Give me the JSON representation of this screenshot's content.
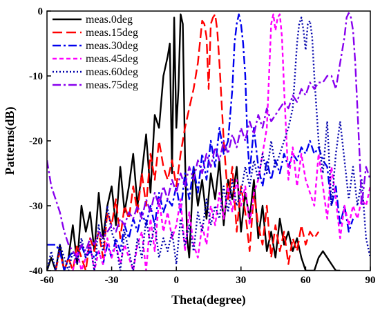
{
  "chart_data": {
    "type": "line",
    "title": "",
    "xlabel": "Theta(degree)",
    "ylabel": "Patterns(dB)",
    "xlim": [
      -60,
      90
    ],
    "ylim": [
      -40,
      0
    ],
    "xticks": [
      -60,
      -30,
      0,
      30,
      60,
      90
    ],
    "yticks": [
      0,
      -10,
      -20,
      -30,
      -40
    ],
    "grid": false,
    "legend_position": "top-left",
    "series": [
      {
        "name": "meas.0deg",
        "color": "#000000",
        "dash": "solid",
        "x": [
          -60,
          -58,
          -56,
          -54,
          -52,
          -50,
          -48,
          -46,
          -44,
          -42,
          -40,
          -38,
          -36,
          -34,
          -32,
          -30,
          -28,
          -26,
          -24,
          -22,
          -20,
          -18,
          -16,
          -14,
          -12,
          -10,
          -8,
          -6,
          -4,
          -3,
          -2,
          -1,
          0,
          1,
          2,
          3,
          4,
          5,
          6,
          8,
          10,
          12,
          14,
          16,
          18,
          20,
          22,
          24,
          26,
          28,
          30,
          32,
          34,
          36,
          38,
          40,
          42,
          44,
          46,
          48,
          50,
          52,
          54,
          56,
          58,
          60,
          62,
          64,
          66,
          68,
          70,
          72,
          74,
          76
        ],
        "y": [
          -40,
          -38,
          -40,
          -36,
          -40,
          -38,
          -33,
          -39,
          -30,
          -34,
          -31,
          -37,
          -28,
          -35,
          -30,
          -27,
          -33,
          -24,
          -31,
          -27,
          -22,
          -30,
          -25,
          -19,
          -28,
          -16,
          -18,
          -10,
          -7,
          -5,
          -25,
          -1,
          -18,
          -12,
          -0.5,
          -2,
          -22,
          -35,
          -38,
          -24,
          -30,
          -26,
          -32,
          -25,
          -29,
          -23,
          -33,
          -26,
          -29,
          -24,
          -34,
          -28,
          -32,
          -26,
          -35,
          -30,
          -37,
          -34,
          -38,
          -32,
          -36,
          -34,
          -37,
          -35,
          -38,
          -40,
          -40,
          -40,
          -38,
          -37,
          -38,
          -39,
          -40,
          -40
        ]
      },
      {
        "name": "meas.15deg",
        "color": "#ff0000",
        "dash": "long",
        "x": [
          -56,
          -54,
          -52,
          -50,
          -48,
          -46,
          -44,
          -42,
          -40,
          -38,
          -36,
          -34,
          -32,
          -30,
          -28,
          -26,
          -24,
          -22,
          -20,
          -18,
          -16,
          -14,
          -12,
          -10,
          -8,
          -6,
          -4,
          -2,
          0,
          2,
          4,
          6,
          8,
          10,
          12,
          13,
          14,
          15,
          16,
          17,
          18,
          19,
          20,
          22,
          24,
          26,
          28,
          30,
          32,
          34,
          36,
          38,
          40,
          42,
          44,
          46,
          48,
          50,
          52,
          54,
          56,
          58,
          60,
          62,
          64,
          66
        ],
        "y": [
          -40,
          -37,
          -40,
          -38,
          -40,
          -36,
          -38,
          -40,
          -35,
          -37,
          -34,
          -38,
          -31,
          -33,
          -29,
          -35,
          -30,
          -32,
          -27,
          -31,
          -25,
          -30,
          -22,
          -26,
          -20,
          -24,
          -26,
          -23,
          -27,
          -22,
          -18,
          -15,
          -12,
          -8,
          -1.5,
          -2,
          -4,
          -12,
          -2,
          -1,
          -0.5,
          -3,
          -8,
          -20,
          -29,
          -24,
          -34,
          -27,
          -31,
          -37,
          -28,
          -33,
          -36,
          -30,
          -38,
          -33,
          -37,
          -34,
          -39,
          -35,
          -37,
          -33,
          -36,
          -34,
          -35,
          -34
        ]
      },
      {
        "name": "meas.30deg",
        "color": "#0000ee",
        "dash": "dashdot",
        "x": [
          -60,
          -58,
          -56,
          -54,
          -52,
          -50,
          -48,
          -46,
          -44,
          -42,
          -40,
          -38,
          -36,
          -34,
          -32,
          -30,
          -28,
          -26,
          -24,
          -22,
          -20,
          -18,
          -16,
          -14,
          -12,
          -10,
          -8,
          -6,
          -4,
          -2,
          0,
          2,
          4,
          6,
          8,
          10,
          12,
          14,
          16,
          18,
          20,
          22,
          24,
          26,
          27,
          28,
          29,
          30,
          31,
          32,
          33,
          34,
          36,
          38,
          40,
          42,
          44,
          46,
          48,
          50,
          52,
          54,
          56,
          58,
          60,
          62,
          64,
          66,
          68,
          70,
          72,
          74,
          76,
          78,
          80,
          82
        ],
        "y": [
          -36,
          -36,
          -36,
          -37,
          -40,
          -38,
          -37,
          -38,
          -36,
          -38,
          -37,
          -38,
          -37,
          -39,
          -36,
          -38,
          -35,
          -37,
          -33,
          -35,
          -32,
          -34,
          -31,
          -33,
          -30,
          -33,
          -28,
          -31,
          -29,
          -30,
          -27,
          -31,
          -25,
          -29,
          -24,
          -28,
          -22,
          -26,
          -20,
          -24,
          -18,
          -22,
          -20,
          -12,
          -5,
          -2,
          -0.5,
          -2,
          -5,
          -10,
          -20,
          -25,
          -18,
          -24,
          -27,
          -23,
          -26,
          -23,
          -25,
          -22,
          -24,
          -22,
          -23,
          -21,
          -22,
          -20,
          -22,
          -21,
          -23,
          -24,
          -30,
          -27,
          -33,
          -30,
          -34,
          -32
        ]
      },
      {
        "name": "meas.45deg",
        "color": "#ff00ff",
        "dash": "short",
        "x": [
          -48,
          -46,
          -44,
          -42,
          -40,
          -38,
          -36,
          -34,
          -32,
          -30,
          -28,
          -26,
          -24,
          -22,
          -20,
          -18,
          -16,
          -14,
          -12,
          -10,
          -8,
          -6,
          -4,
          -2,
          0,
          2,
          4,
          6,
          8,
          10,
          12,
          14,
          16,
          18,
          20,
          22,
          24,
          26,
          28,
          30,
          32,
          34,
          36,
          38,
          40,
          42,
          43,
          44,
          45,
          46,
          47,
          48,
          49,
          50,
          52,
          54,
          56,
          58,
          60,
          62,
          64,
          66,
          68,
          70,
          72,
          74,
          76,
          78,
          80,
          82,
          84,
          86,
          88,
          90
        ],
        "y": [
          -40,
          -37,
          -40,
          -38,
          -36,
          -40,
          -37,
          -39,
          -35,
          -38,
          -36,
          -39,
          -36,
          -38,
          -40,
          -36,
          -34,
          -40,
          -32,
          -37,
          -29,
          -34,
          -31,
          -35,
          -33,
          -29,
          -37,
          -31,
          -36,
          -38,
          -33,
          -36,
          -30,
          -33,
          -28,
          -32,
          -27,
          -31,
          -26,
          -30,
          -27,
          -33,
          -28,
          -26,
          -22,
          -18,
          -10,
          -2,
          -0.5,
          -3,
          -1,
          -0.5,
          -4,
          -12,
          -26,
          -21,
          -27,
          -22,
          -26,
          -28,
          -30,
          -22,
          -27,
          -32,
          -24,
          -29,
          -35,
          -30,
          -33,
          -30,
          -32,
          -29,
          -30,
          -27
        ]
      },
      {
        "name": "meas.60deg",
        "color": "#0000aa",
        "dash": "dotted",
        "x": [
          -60,
          -58,
          -56,
          -54,
          -52,
          -50,
          -48,
          -46,
          -44,
          -42,
          -40,
          -38,
          -36,
          -34,
          -32,
          -30,
          -28,
          -26,
          -24,
          -22,
          -20,
          -18,
          -16,
          -14,
          -12,
          -10,
          -8,
          -6,
          -4,
          -2,
          0,
          2,
          4,
          6,
          8,
          10,
          12,
          14,
          16,
          18,
          20,
          22,
          24,
          26,
          28,
          30,
          32,
          34,
          36,
          38,
          40,
          42,
          44,
          46,
          48,
          50,
          52,
          54,
          56,
          57,
          58,
          59,
          60,
          61,
          62,
          63,
          64,
          66,
          68,
          70,
          72,
          74,
          76,
          78,
          80,
          82,
          84,
          86,
          88,
          90
        ],
        "y": [
          -40,
          -37,
          -40,
          -36,
          -38,
          -40,
          -37,
          -39,
          -35,
          -38,
          -36,
          -40,
          -33,
          -37,
          -30,
          -34,
          -36,
          -40,
          -34,
          -37,
          -40,
          -35,
          -38,
          -32,
          -36,
          -33,
          -38,
          -35,
          -37,
          -34,
          -39,
          -32,
          -36,
          -33,
          -37,
          -31,
          -34,
          -29,
          -33,
          -30,
          -32,
          -27,
          -31,
          -26,
          -30,
          -28,
          -24,
          -27,
          -23,
          -26,
          -22,
          -25,
          -20,
          -24,
          -22,
          -20,
          -18,
          -15,
          -5,
          -2,
          -1,
          -3,
          -6,
          -2,
          -1.5,
          -4,
          -10,
          -20,
          -25,
          -17,
          -30,
          -22,
          -17,
          -23,
          -29,
          -24,
          -30,
          -26,
          -35,
          -38
        ]
      },
      {
        "name": "meas.75deg",
        "color": "#8800ee",
        "dash": "dashdot",
        "x": [
          -60,
          -58,
          -56,
          -54,
          -52,
          -50,
          -48,
          -46,
          -44,
          -42,
          -40,
          -38,
          -36,
          -34,
          -32,
          -30,
          -28,
          -26,
          -24,
          -22,
          -20,
          -18,
          -16,
          -14,
          -12,
          -10,
          -8,
          -6,
          -4,
          -2,
          0,
          2,
          4,
          6,
          8,
          10,
          12,
          14,
          16,
          18,
          20,
          22,
          24,
          26,
          28,
          30,
          32,
          34,
          36,
          38,
          40,
          42,
          44,
          46,
          48,
          50,
          52,
          54,
          56,
          58,
          60,
          62,
          64,
          66,
          68,
          70,
          72,
          74,
          76,
          78,
          79,
          80,
          81,
          82,
          83,
          84,
          85,
          86,
          88,
          90
        ],
        "y": [
          -23,
          -27,
          -29,
          -31,
          -34,
          -36,
          -37,
          -38,
          -36,
          -37,
          -35,
          -36,
          -34,
          -35,
          -34,
          -33,
          -34,
          -32,
          -33,
          -31,
          -32,
          -30,
          -32,
          -29,
          -31,
          -28,
          -30,
          -27,
          -29,
          -26,
          -28,
          -25,
          -27,
          -24,
          -26,
          -23,
          -25,
          -22,
          -24,
          -21,
          -23,
          -20,
          -22,
          -19,
          -21,
          -18,
          -20,
          -17,
          -19,
          -16,
          -18,
          -15,
          -17,
          -16,
          -15,
          -14,
          -15,
          -13,
          -14,
          -12,
          -13,
          -11,
          -12,
          -11,
          -11,
          -10,
          -10,
          -12,
          -8,
          -4,
          -1,
          -0.3,
          -1,
          -3,
          -8,
          -15,
          -22,
          -30,
          -24,
          -26
        ]
      }
    ]
  }
}
